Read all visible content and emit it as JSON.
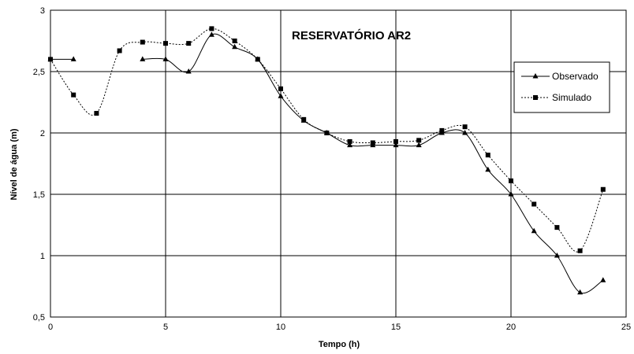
{
  "chart_data": {
    "type": "line",
    "title": "RESERVATÓRIO AR2",
    "xlabel": "Tempo (h)",
    "ylabel": "Nível de água (m)",
    "xlim": [
      0,
      25
    ],
    "ylim": [
      0.5,
      3
    ],
    "x_ticks": [
      "0",
      "5",
      "10",
      "15",
      "20",
      "25"
    ],
    "y_ticks": [
      "0,5",
      "1",
      "1,5",
      "2",
      "2,5",
      "3"
    ],
    "grid": true,
    "legend_position": "right",
    "series": [
      {
        "name": "Observado",
        "color": "#000000",
        "marker": "triangle",
        "line_style": "solid",
        "segments": [
          [
            [
              0,
              2.6
            ],
            [
              1,
              2.6
            ]
          ],
          [
            [
              4,
              2.6
            ],
            [
              5,
              2.6
            ],
            [
              6,
              2.5
            ],
            [
              7,
              2.8
            ],
            [
              8,
              2.7
            ],
            [
              9,
              2.6
            ],
            [
              10,
              2.3
            ],
            [
              11,
              2.1
            ],
            [
              12,
              2.0
            ],
            [
              13,
              1.9
            ],
            [
              14,
              1.9
            ],
            [
              15,
              1.9
            ],
            [
              16,
              1.9
            ],
            [
              17,
              2.0
            ],
            [
              18,
              2.0
            ],
            [
              19,
              1.7
            ],
            [
              20,
              1.5
            ],
            [
              21,
              1.2
            ],
            [
              22,
              1.0
            ],
            [
              23,
              0.7
            ],
            [
              24,
              0.8
            ]
          ]
        ]
      },
      {
        "name": "Simulado",
        "color": "#000000",
        "marker": "square",
        "line_style": "dotted",
        "segments": [
          [
            [
              0,
              2.6
            ],
            [
              1,
              2.31
            ],
            [
              2,
              2.16
            ],
            [
              3,
              2.67
            ],
            [
              4,
              2.74
            ],
            [
              5,
              2.73
            ],
            [
              6,
              2.73
            ],
            [
              7,
              2.85
            ],
            [
              8,
              2.75
            ],
            [
              9,
              2.6
            ],
            [
              10,
              2.36
            ],
            [
              11,
              2.11
            ],
            [
              12,
              2.0
            ],
            [
              13,
              1.93
            ],
            [
              14,
              1.92
            ],
            [
              15,
              1.93
            ],
            [
              16,
              1.94
            ],
            [
              17,
              2.02
            ],
            [
              18,
              2.05
            ],
            [
              19,
              1.82
            ],
            [
              20,
              1.61
            ],
            [
              21,
              1.42
            ],
            [
              22,
              1.23
            ],
            [
              23,
              1.04
            ],
            [
              24,
              1.54
            ]
          ]
        ]
      }
    ]
  }
}
